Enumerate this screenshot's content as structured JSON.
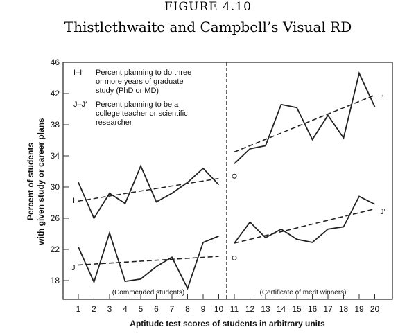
{
  "figure_number": "FIGURE 4.10",
  "title": "Thistlethwaite and Campbell’s Visual RD",
  "chart_data": {
    "type": "line",
    "xlabel": "Aptitude test scores of students in arbitrary units",
    "ylabel": [
      "Percent of students",
      "with given study or career plans"
    ],
    "xlim": [
      0.5,
      21
    ],
    "ylim": [
      16,
      46
    ],
    "x_ticks": [
      1,
      2,
      3,
      4,
      5,
      6,
      7,
      8,
      9,
      10,
      11,
      12,
      13,
      14,
      15,
      16,
      17,
      18,
      19,
      20
    ],
    "y_ticks": [
      18,
      22,
      26,
      30,
      34,
      38,
      42,
      46
    ],
    "cutoff": 10.5,
    "grid": false,
    "legend": [
      {
        "key": "I–I′",
        "lines": [
          "Percent planning to do three",
          "or more years of graduate",
          "study (PhD or MD)"
        ]
      },
      {
        "key": "J–J′",
        "lines": [
          "Percent planning to be a",
          "college teacher or scientific",
          "researcher"
        ]
      }
    ],
    "region_labels": [
      "(Commended students)",
      "(Certificate of merit winners)"
    ],
    "series": [
      {
        "name": "I",
        "x": [
          1,
          2,
          3,
          4,
          5,
          6,
          7,
          8,
          9,
          10
        ],
        "y": [
          30.6,
          26.0,
          29.2,
          27.9,
          32.7,
          28.1,
          29.2,
          30.6,
          32.4,
          30.3
        ],
        "trend": [
          [
            1,
            28.2
          ],
          [
            10,
            31.1
          ]
        ]
      },
      {
        "name": "I′",
        "x": [
          11,
          12,
          13,
          14,
          15,
          16,
          17,
          18,
          19,
          20
        ],
        "y": [
          33.0,
          34.9,
          35.3,
          40.6,
          40.2,
          36.1,
          39.2,
          36.3,
          44.6,
          40.3
        ],
        "trend": [
          [
            11,
            34.5
          ],
          [
            20,
            41.8
          ]
        ]
      },
      {
        "name": "J",
        "x": [
          1,
          2,
          3,
          4,
          5,
          6,
          7,
          8,
          9,
          10
        ],
        "y": [
          22.3,
          17.8,
          24.1,
          17.9,
          18.2,
          19.8,
          21.0,
          17.0,
          22.9,
          23.7
        ],
        "trend": [
          [
            1,
            20.0
          ],
          [
            10,
            21.1
          ]
        ]
      },
      {
        "name": "J′",
        "x": [
          11,
          12,
          13,
          14,
          15,
          16,
          17,
          18,
          19,
          20
        ],
        "y": [
          22.8,
          25.5,
          23.5,
          24.6,
          23.3,
          22.9,
          24.6,
          24.9,
          28.8,
          27.8
        ],
        "trend": [
          [
            11,
            22.8
          ],
          [
            20,
            27.2
          ]
        ]
      }
    ],
    "projected_points": [
      {
        "x": 11,
        "y": 31.4
      },
      {
        "x": 11,
        "y": 20.9
      }
    ],
    "line_color": "#222222"
  }
}
